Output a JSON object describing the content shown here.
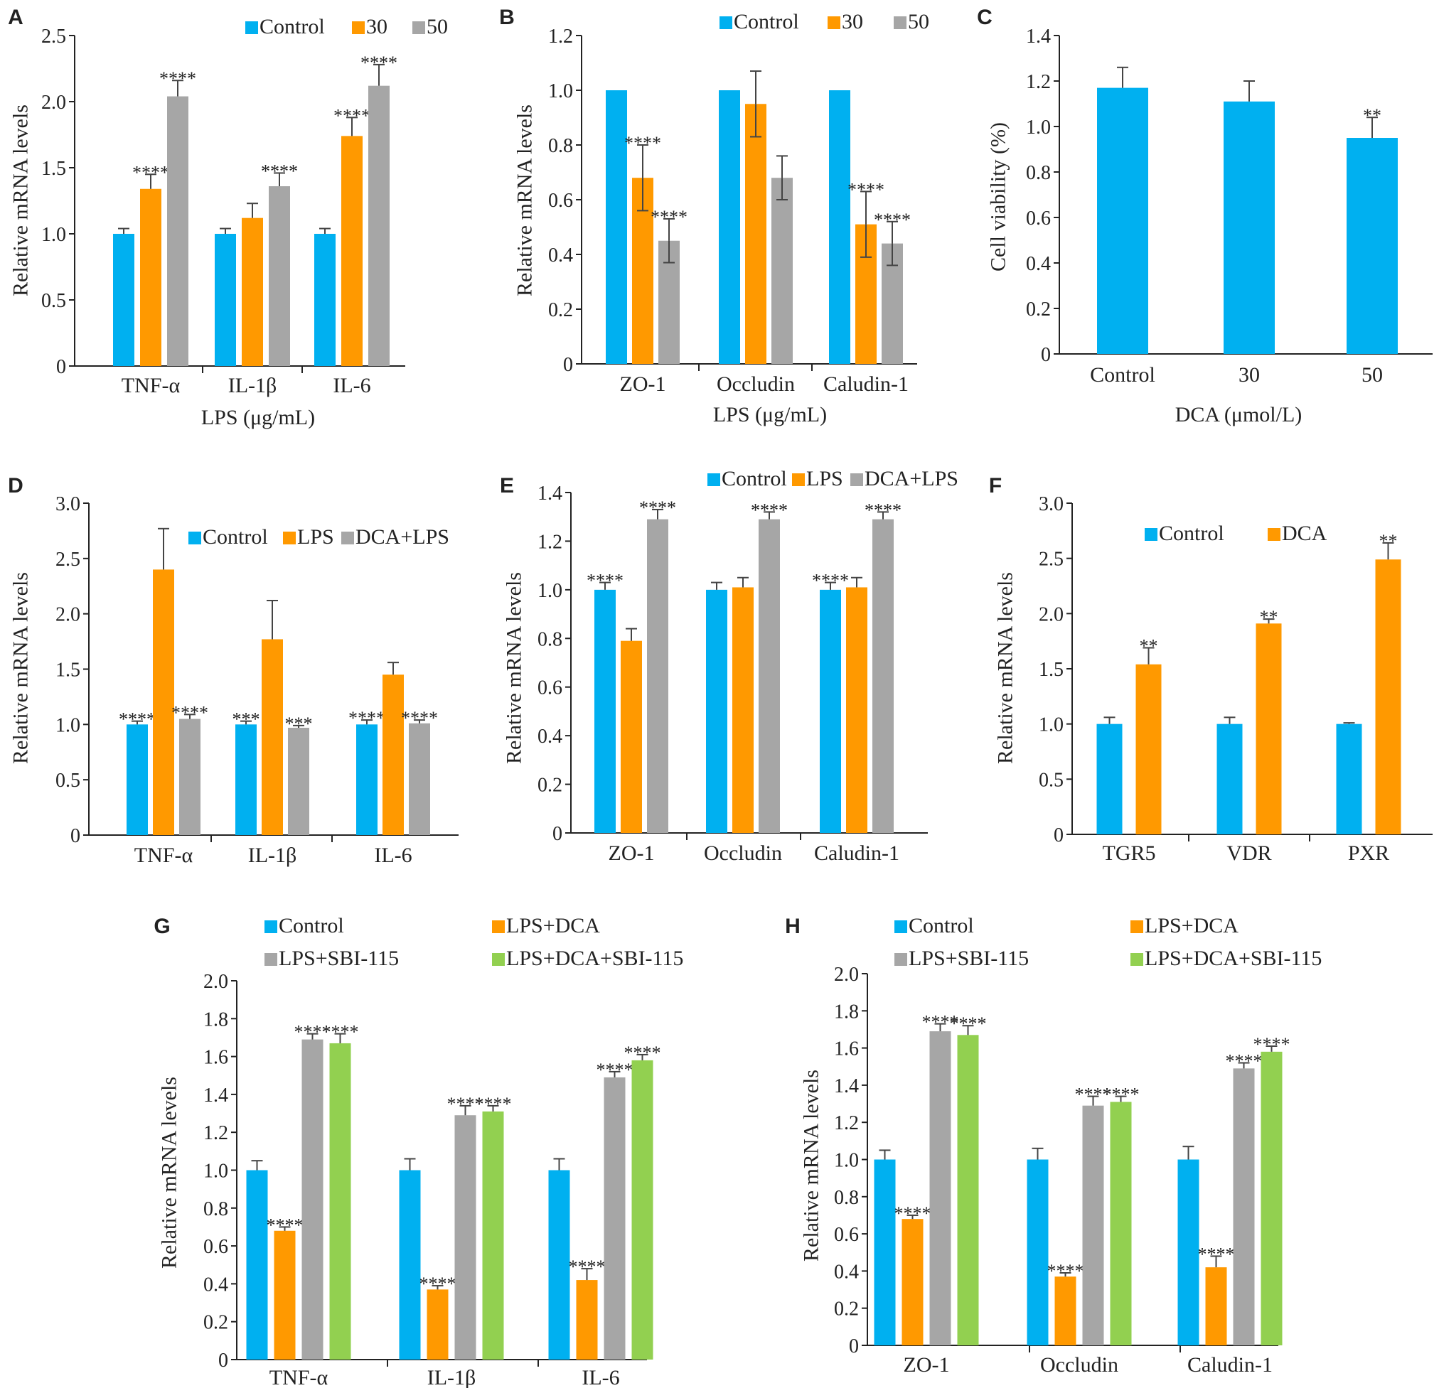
{
  "colors": {
    "Control": "#00b0f0",
    "30": "#ff9900",
    "50": "#a6a6a6",
    "LPS": "#ff9900",
    "DCA+LPS": "#a6a6a6",
    "DCA": "#ff9900",
    "LPS+DCA": "#ff9900",
    "LPS+SBI-115": "#a6a6a6",
    "LPS+DCA+SBI-115": "#92d050"
  },
  "chart_data": [
    {
      "panel": "A",
      "type": "bar",
      "categories": [
        "TNF-α",
        "IL-1β",
        "IL-6"
      ],
      "series": [
        {
          "name": "Control",
          "values": [
            1.0,
            1.0,
            1.0
          ],
          "errors": [
            0.04,
            0.04,
            0.04
          ],
          "sig": [
            "",
            "",
            ""
          ]
        },
        {
          "name": "30",
          "values": [
            1.34,
            1.12,
            1.74
          ],
          "errors": [
            0.11,
            0.11,
            0.14
          ],
          "sig": [
            "****",
            "",
            "****"
          ]
        },
        {
          "name": "50",
          "values": [
            2.04,
            1.36,
            2.12
          ],
          "errors": [
            0.12,
            0.1,
            0.16
          ],
          "sig": [
            "****",
            "****",
            "****"
          ]
        }
      ],
      "ylim": [
        0,
        2.5
      ],
      "yticks": [
        "0",
        "0.5",
        "1.0",
        "1.5",
        "2.0",
        "2.5"
      ],
      "ylabel": "Relative mRNA levels",
      "xlabel": "LPS (μg/mL)",
      "legend": "top"
    },
    {
      "panel": "B",
      "type": "bar",
      "categories": [
        "ZO-1",
        "Occludin",
        "Caludin-1"
      ],
      "series": [
        {
          "name": "Control",
          "values": [
            1.0,
            1.0,
            1.0
          ],
          "errors": [
            0.0,
            0.0,
            0.0
          ],
          "sig": [
            "",
            "",
            ""
          ]
        },
        {
          "name": "30",
          "values": [
            0.68,
            0.95,
            0.51
          ],
          "errors": [
            0.12,
            0.12,
            0.12
          ],
          "sig": [
            "****",
            "",
            "****"
          ]
        },
        {
          "name": "50",
          "values": [
            0.45,
            0.68,
            0.44
          ],
          "errors": [
            0.08,
            0.08,
            0.08
          ],
          "sig": [
            "****",
            "",
            "****"
          ]
        }
      ],
      "ylim": [
        0,
        1.2
      ],
      "yticks": [
        "0",
        "0.2",
        "0.4",
        "0.6",
        "0.8",
        "1.0",
        "1.2"
      ],
      "ylabel": "Relative mRNA levels",
      "xlabel": "LPS (μg/mL)",
      "legend": "top"
    },
    {
      "panel": "C",
      "type": "bar",
      "categories": [
        "Control",
        "30",
        "50"
      ],
      "series": [
        {
          "name": "Control",
          "values": [
            1.17,
            1.11,
            0.95
          ],
          "errors": [
            0.09,
            0.09,
            0.09
          ],
          "sig": [
            "",
            "",
            "**"
          ]
        }
      ],
      "ylim": [
        0,
        1.4
      ],
      "yticks": [
        "0",
        "0.2",
        "0.4",
        "0.6",
        "0.8",
        "1.0",
        "1.2",
        "1.4"
      ],
      "ylabel": "Cell viability (%)",
      "xlabel": "DCA (μmol/L)",
      "legend": "none"
    },
    {
      "panel": "D",
      "type": "bar",
      "categories": [
        "TNF-α",
        "IL-1β",
        "IL-6"
      ],
      "series": [
        {
          "name": "Control",
          "values": [
            1.0,
            1.0,
            1.0
          ],
          "errors": [
            0.03,
            0.03,
            0.04
          ],
          "sig": [
            "****",
            "***",
            "****"
          ]
        },
        {
          "name": "LPS",
          "values": [
            2.4,
            1.77,
            1.45
          ],
          "errors": [
            0.37,
            0.35,
            0.11
          ],
          "sig": [
            "",
            "",
            ""
          ]
        },
        {
          "name": "DCA+LPS",
          "values": [
            1.05,
            0.97,
            1.01
          ],
          "errors": [
            0.04,
            0.02,
            0.03
          ],
          "sig": [
            "****",
            "***",
            "****"
          ]
        }
      ],
      "ylim": [
        0,
        3.0
      ],
      "yticks": [
        "0",
        "0.5",
        "1.0",
        "1.5",
        "2.0",
        "2.5",
        "3.0"
      ],
      "ylabel": "Relative mRNA levels",
      "xlabel": "",
      "legend": "top"
    },
    {
      "panel": "E",
      "type": "bar",
      "categories": [
        "ZO-1",
        "Occludin",
        "Caludin-1"
      ],
      "series": [
        {
          "name": "Control",
          "values": [
            1.0,
            1.0,
            1.0
          ],
          "errors": [
            0.03,
            0.03,
            0.03
          ],
          "sig": [
            "****",
            "",
            "****"
          ]
        },
        {
          "name": "LPS",
          "values": [
            0.79,
            1.01,
            1.01
          ],
          "errors": [
            0.05,
            0.04,
            0.04
          ],
          "sig": [
            "",
            "",
            ""
          ]
        },
        {
          "name": "DCA+LPS",
          "values": [
            1.29,
            1.29,
            1.29
          ],
          "errors": [
            0.04,
            0.03,
            0.03
          ],
          "sig": [
            "****",
            "****",
            "****"
          ]
        }
      ],
      "ylim": [
        0,
        1.4
      ],
      "yticks": [
        "0",
        "0.2",
        "0.4",
        "0.6",
        "0.8",
        "1.0",
        "1.2",
        "1.4"
      ],
      "ylabel": "Relative mRNA levels",
      "xlabel": "",
      "legend": "top"
    },
    {
      "panel": "F",
      "type": "bar",
      "categories": [
        "TGR5",
        "VDR",
        "PXR"
      ],
      "series": [
        {
          "name": "Control",
          "values": [
            1.0,
            1.0,
            1.0
          ],
          "errors": [
            0.06,
            0.06,
            0.01
          ],
          "sig": [
            "",
            "",
            ""
          ]
        },
        {
          "name": "DCA",
          "values": [
            1.54,
            1.91,
            2.49
          ],
          "errors": [
            0.15,
            0.04,
            0.15
          ],
          "sig": [
            "**",
            "**",
            "**"
          ]
        }
      ],
      "ylim": [
        0,
        3.0
      ],
      "yticks": [
        "0",
        "0.5",
        "1.0",
        "1.5",
        "2.0",
        "2.5",
        "3.0"
      ],
      "ylabel": "Relative mRNA levels",
      "xlabel": "",
      "legend": "top"
    },
    {
      "panel": "G",
      "type": "bar",
      "categories": [
        "TNF-α",
        "IL-1β",
        "IL-6"
      ],
      "series": [
        {
          "name": "Control",
          "values": [
            1.0,
            1.0,
            1.0
          ],
          "errors": [
            0.05,
            0.06,
            0.06
          ],
          "sig": [
            "",
            "",
            ""
          ]
        },
        {
          "name": "LPS+DCA",
          "values": [
            0.68,
            0.37,
            0.42
          ],
          "errors": [
            0.02,
            0.02,
            0.06
          ],
          "sig": [
            "****",
            "****",
            "****"
          ]
        },
        {
          "name": "LPS+SBI-115",
          "values": [
            1.69,
            1.29,
            1.49
          ],
          "errors": [
            0.03,
            0.05,
            0.03
          ],
          "sig": [
            "****",
            "****",
            "****"
          ]
        },
        {
          "name": "LPS+DCA+SBI-115",
          "values": [
            1.67,
            1.31,
            1.58
          ],
          "errors": [
            0.05,
            0.03,
            0.03
          ],
          "sig": [
            "****",
            "****",
            "****"
          ]
        }
      ],
      "ylim": [
        0,
        2.0
      ],
      "yticks": [
        "0",
        "0.2",
        "0.4",
        "0.6",
        "0.8",
        "1.0",
        "1.2",
        "1.4",
        "1.6",
        "1.8",
        "2.0"
      ],
      "ylabel": "Relative mRNA levels",
      "xlabel": "",
      "legend": "top"
    },
    {
      "panel": "H",
      "type": "bar",
      "categories": [
        "ZO-1",
        "Occludin",
        "Caludin-1"
      ],
      "series": [
        {
          "name": "Control",
          "values": [
            1.0,
            1.0,
            1.0
          ],
          "errors": [
            0.05,
            0.06,
            0.07
          ],
          "sig": [
            "",
            "",
            ""
          ]
        },
        {
          "name": "LPS+DCA",
          "values": [
            0.68,
            0.37,
            0.42
          ],
          "errors": [
            0.02,
            0.02,
            0.06
          ],
          "sig": [
            "****",
            "****",
            "****"
          ]
        },
        {
          "name": "LPS+SBI-115",
          "values": [
            1.69,
            1.29,
            1.49
          ],
          "errors": [
            0.04,
            0.05,
            0.03
          ],
          "sig": [
            "****",
            "****",
            "****"
          ]
        },
        {
          "name": "LPS+DCA+SBI-115",
          "values": [
            1.67,
            1.31,
            1.58
          ],
          "errors": [
            0.05,
            0.03,
            0.03
          ],
          "sig": [
            "****",
            "****",
            "****"
          ]
        }
      ],
      "ylim": [
        0,
        2.0
      ],
      "yticks": [
        "0",
        "0.2",
        "0.4",
        "0.6",
        "0.8",
        "1.0",
        "1.2",
        "1.4",
        "1.6",
        "1.8",
        "2.0"
      ],
      "ylabel": "Relative mRNA levels",
      "xlabel": "",
      "legend": "top"
    }
  ]
}
